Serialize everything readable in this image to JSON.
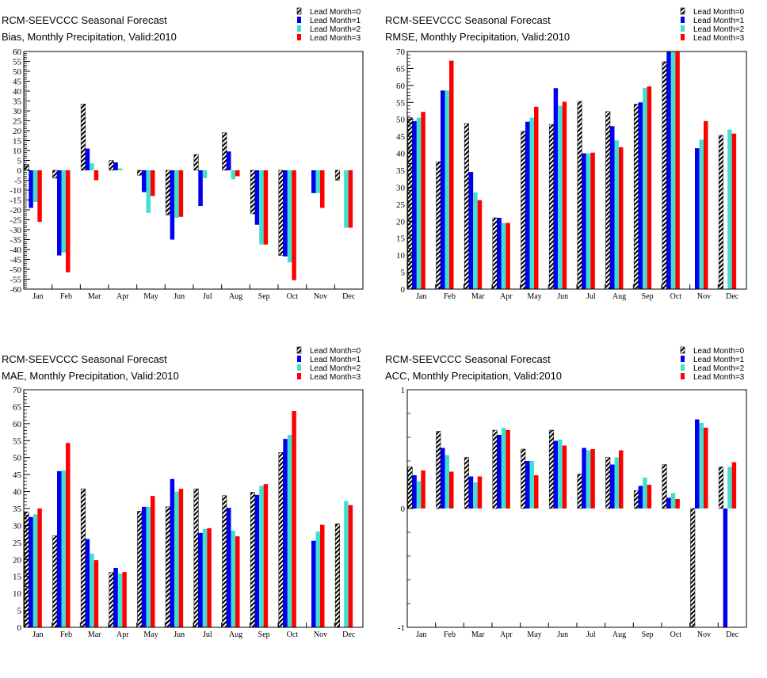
{
  "chart_data": [
    {
      "type": "bar",
      "title": "RCM-SEEVCCC Seasonal Forecast",
      "subtitle": "Bias, Monthly Precipitation, Valid:2010",
      "xlabel": "",
      "ylabel": "",
      "ylim": [
        -60,
        60
      ],
      "yticks": [
        -60,
        -55,
        -50,
        -45,
        -40,
        -35,
        -30,
        -25,
        -20,
        -15,
        -10,
        -5,
        0,
        5,
        10,
        15,
        20,
        25,
        30,
        35,
        40,
        45,
        50,
        55,
        60
      ],
      "categories": [
        "Jan",
        "Feb",
        "Mar",
        "Apr",
        "May",
        "Jun",
        "Jul",
        "Aug",
        "Sep",
        "Oct",
        "Nov",
        "Dec"
      ],
      "series": [
        {
          "name": "Lead Month=0",
          "values": [
            3,
            -4,
            33.5,
            5,
            -2.5,
            -22.5,
            8,
            19,
            -22,
            -43,
            0,
            -5
          ]
        },
        {
          "name": "Lead Month=1",
          "values": [
            -19,
            -43,
            11,
            4,
            -11,
            -35,
            -18,
            9.5,
            -27.5,
            -43.5,
            -11.5,
            0
          ]
        },
        {
          "name": "Lead Month=2",
          "values": [
            -16,
            -41.5,
            3.5,
            1,
            -21.5,
            -24,
            -4,
            -4.5,
            -37.5,
            -46.5,
            -11.5,
            -29
          ]
        },
        {
          "name": "Lead Month=3",
          "values": [
            -26,
            -51.5,
            -5,
            0,
            -13,
            -23.5,
            0,
            -3,
            -37.5,
            -55.5,
            -19,
            -29
          ]
        }
      ],
      "grid": false,
      "legend": "top-right"
    },
    {
      "type": "bar",
      "title": "RCM-SEEVCCC Seasonal Forecast",
      "subtitle": "RMSE, Monthly Precipitation, Valid:2010",
      "xlabel": "",
      "ylabel": "",
      "ylim": [
        0,
        70
      ],
      "yticks": [
        0,
        5,
        10,
        15,
        20,
        25,
        30,
        35,
        40,
        45,
        50,
        55,
        60,
        65,
        70
      ],
      "categories": [
        "Jan",
        "Feb",
        "Mar",
        "Apr",
        "May",
        "Jun",
        "Jul",
        "Aug",
        "Sep",
        "Oct",
        "Nov",
        "Dec"
      ],
      "series": [
        {
          "name": "Lead Month=0",
          "values": [
            50.5,
            37.5,
            48.8,
            21,
            46.5,
            48.5,
            55.3,
            52.3,
            54.5,
            67,
            0,
            45.3
          ]
        },
        {
          "name": "Lead Month=1",
          "values": [
            49.5,
            58.5,
            34.5,
            21,
            49.3,
            59.2,
            40,
            48,
            55,
            70,
            41.5,
            0
          ]
        },
        {
          "name": "Lead Month=2",
          "values": [
            50.5,
            58.5,
            28.5,
            19.5,
            50.5,
            54,
            40,
            43.8,
            59.3,
            70,
            44,
            47
          ]
        },
        {
          "name": "Lead Month=3",
          "values": [
            52.2,
            67.3,
            26.2,
            19.5,
            53.7,
            55.2,
            40.2,
            41.8,
            59.7,
            70,
            49.5,
            45.8
          ]
        }
      ],
      "grid": false,
      "legend": "top-right"
    },
    {
      "type": "bar",
      "title": "RCM-SEEVCCC Seasonal Forecast",
      "subtitle": "MAE, Monthly Precipitation, Valid:2010",
      "xlabel": "",
      "ylabel": "",
      "ylim": [
        0,
        70
      ],
      "yticks": [
        0,
        5,
        10,
        15,
        20,
        25,
        30,
        35,
        40,
        45,
        50,
        55,
        60,
        65,
        70
      ],
      "categories": [
        "Jan",
        "Feb",
        "Mar",
        "Apr",
        "May",
        "Jun",
        "Jul",
        "Aug",
        "Sep",
        "Oct",
        "Nov",
        "Dec"
      ],
      "series": [
        {
          "name": "Lead Month=0",
          "values": [
            34,
            27,
            40.8,
            16.2,
            34.2,
            35.5,
            40.8,
            38.8,
            39.8,
            51.5,
            0,
            30.5
          ]
        },
        {
          "name": "Lead Month=1",
          "values": [
            32.5,
            46,
            26,
            17.5,
            35.5,
            43.7,
            27.8,
            35.2,
            39,
            55.5,
            25.5,
            0
          ]
        },
        {
          "name": "Lead Month=2",
          "values": [
            33.3,
            46.2,
            21.7,
            15.8,
            35.5,
            40,
            29,
            28.5,
            41.7,
            56.7,
            28.2,
            37.2
          ]
        },
        {
          "name": "Lead Month=3",
          "values": [
            35,
            54.3,
            19.8,
            16.3,
            38.7,
            40.8,
            29.2,
            26.8,
            42.2,
            63.7,
            30.2,
            36
          ]
        }
      ],
      "grid": false,
      "legend": "top-right"
    },
    {
      "type": "bar",
      "title": "RCM-SEEVCCC Seasonal Forecast",
      "subtitle": "ACC, Monthly Precipitation, Valid:2010",
      "xlabel": "",
      "ylabel": "",
      "ylim": [
        -1,
        1
      ],
      "yticks": [
        -1,
        0,
        1
      ],
      "categories": [
        "Jan",
        "Feb",
        "Mar",
        "Apr",
        "May",
        "Jun",
        "Jul",
        "Aug",
        "Sep",
        "Oct",
        "Nov",
        "Dec"
      ],
      "series": [
        {
          "name": "Lead Month=0",
          "values": [
            0.35,
            0.65,
            0.43,
            0.66,
            0.5,
            0.66,
            0.29,
            0.43,
            0.15,
            0.37,
            -1,
            0.35
          ]
        },
        {
          "name": "Lead Month=1",
          "values": [
            0.28,
            0.51,
            0.27,
            0.62,
            0.4,
            0.57,
            0.51,
            0.37,
            0.19,
            0.09,
            0.75,
            -1
          ]
        },
        {
          "name": "Lead Month=2",
          "values": [
            0.23,
            0.45,
            0.22,
            0.68,
            0.4,
            0.58,
            0.49,
            0.43,
            0.26,
            0.13,
            0.72,
            0.35
          ]
        },
        {
          "name": "Lead Month=3",
          "values": [
            0.32,
            0.31,
            0.27,
            0.66,
            0.28,
            0.53,
            0.5,
            0.49,
            0.2,
            0.08,
            0.68,
            0.39
          ]
        }
      ],
      "grid": false,
      "legend": "top-right"
    }
  ],
  "series_colors": [
    "hatched-black",
    "#0000ee",
    "#40e0d0",
    "#ff0000"
  ],
  "legend_labels": [
    "Lead Month=0",
    "Lead Month=1",
    "Lead Month=2",
    "Lead Month=3"
  ]
}
